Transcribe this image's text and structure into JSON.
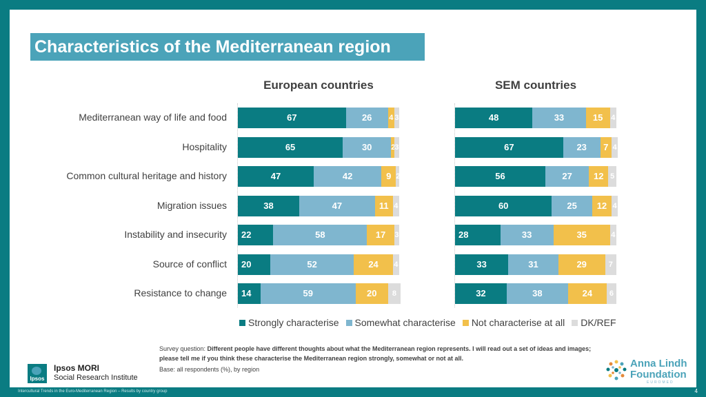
{
  "title": "Characteristics of the Mediterranean region",
  "chart_data": {
    "type": "bar",
    "orientation": "horizontal-stacked-100",
    "categories": [
      "Mediterranean way of life and food",
      "Hospitality",
      "Common cultural heritage and history",
      "Migration issues",
      "Instability and insecurity",
      "Source of conflict",
      "Resistance to change"
    ],
    "legend": [
      {
        "name": "Strongly characterise",
        "color": "#0a7c82"
      },
      {
        "name": "Somewhat characterise",
        "color": "#7fb6cf"
      },
      {
        "name": "Not characterise at all",
        "color": "#f2c04b"
      },
      {
        "name": "DK/REF",
        "color": "#dcdcdc"
      }
    ],
    "panels": [
      {
        "title": "European countries",
        "series": [
          {
            "name": "Strongly characterise",
            "values": [
              67,
              65,
              47,
              38,
              22,
              20,
              14
            ]
          },
          {
            "name": "Somewhat characterise",
            "values": [
              26,
              30,
              42,
              47,
              58,
              52,
              59
            ]
          },
          {
            "name": "Not characterise at all",
            "values": [
              4,
              2,
              9,
              11,
              17,
              24,
              20
            ]
          },
          {
            "name": "DK/REF",
            "values": [
              3,
              3,
              2,
              4,
              3,
              4,
              8
            ]
          }
        ]
      },
      {
        "title": "SEM countries",
        "series": [
          {
            "name": "Strongly characterise",
            "values": [
              48,
              67,
              56,
              60,
              28,
              33,
              32
            ]
          },
          {
            "name": "Somewhat characterise",
            "values": [
              33,
              23,
              27,
              25,
              33,
              31,
              38
            ]
          },
          {
            "name": "Not characterise at all",
            "values": [
              15,
              7,
              12,
              12,
              35,
              29,
              24
            ]
          },
          {
            "name": "DK/REF",
            "values": [
              4,
              4,
              5,
              4,
              4,
              7,
              6
            ]
          }
        ]
      }
    ]
  },
  "survey": {
    "prefix": "Survey question: ",
    "question": "Different people have different thoughts about what the Mediterranean region represents. I will read out a set of ideas and images; please tell me if you think these characterise the Mediterranean region strongly, somewhat or not at all.",
    "base": "Base: all respondents (%), by region"
  },
  "branding": {
    "ipsos_logo_text": "Ipsos",
    "ipsos_name": "Ipsos MORI",
    "ipsos_sub": "Social Research Institute",
    "alf_name_1": "Anna Lindh",
    "alf_name_2": "Foundation",
    "alf_sub": "EUROMED"
  },
  "footer": "Intercultural Trends in the Euro-Mediterranean Region – Results by country group",
  "page_number": "4"
}
